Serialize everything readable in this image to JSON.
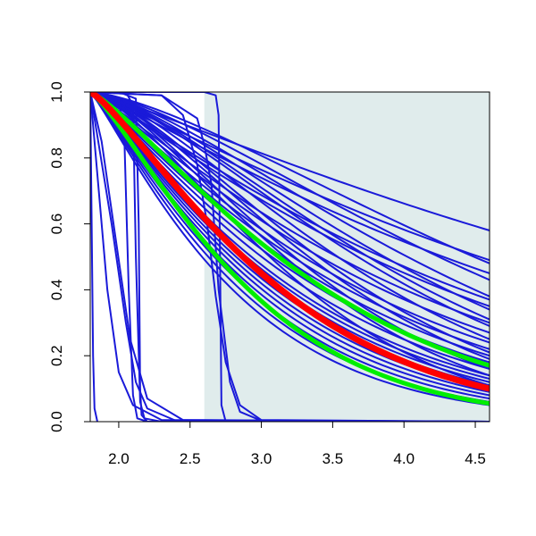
{
  "chart_data": {
    "type": "line",
    "title": "",
    "xlabel": "",
    "ylabel": "",
    "xlim": [
      1.8,
      4.6
    ],
    "ylim": [
      0,
      1
    ],
    "x_ticks": [
      2.0,
      2.5,
      3.0,
      3.5,
      4.0,
      4.5
    ],
    "x_tick_labels": [
      "2.0",
      "2.5",
      "3.0",
      "3.5",
      "4.0",
      "4.5"
    ],
    "y_ticks": [
      0.0,
      0.2,
      0.4,
      0.6,
      0.8,
      1.0
    ],
    "y_tick_labels": [
      "0.0",
      "0.2",
      "0.4",
      "0.6",
      "0.8",
      "1.0"
    ],
    "grid": false,
    "legend": "none",
    "shaded_region": {
      "x_start": 2.6,
      "x_end": 4.6,
      "color": "#e0ecec"
    },
    "colors": {
      "samples": "#1a1ad9",
      "central": "#ff0000",
      "bounds": "#00ee00"
    },
    "curve_samples": {
      "gradual_ends": [
        0.58,
        0.49,
        0.45,
        0.37,
        0.35,
        0.3,
        0.27,
        0.24,
        0.22,
        0.2,
        0.18,
        0.16,
        0.14,
        0.13,
        0.12,
        0.11,
        0.1,
        0.09,
        0.08,
        0.07,
        0.06,
        0.05
      ],
      "shouldered_ends": [
        0.48,
        0.43,
        0.38,
        0.34,
        0.31,
        0.29,
        0.25,
        0.21,
        0.19,
        0.16,
        0.14,
        0.11
      ],
      "steep_drops": [
        {
          "x": [
            1.8,
            1.81,
            1.82,
            1.83,
            1.85
          ],
          "y": [
            1.0,
            0.6,
            0.2,
            0.04,
            0.0
          ]
        },
        {
          "x": [
            1.8,
            1.86,
            1.92,
            2.0,
            2.1,
            2.3,
            4.6
          ],
          "y": [
            1.0,
            0.7,
            0.4,
            0.15,
            0.05,
            0.005,
            0.0
          ]
        },
        {
          "x": [
            1.8,
            1.95,
            2.05,
            2.12,
            2.2,
            2.4,
            4.6
          ],
          "y": [
            1.0,
            0.6,
            0.3,
            0.12,
            0.04,
            0.003,
            0.0
          ]
        },
        {
          "x": [
            1.8,
            1.88,
            1.98,
            2.08,
            2.2,
            2.45,
            4.6
          ],
          "y": [
            1.0,
            0.85,
            0.55,
            0.25,
            0.07,
            0.005,
            0.0
          ]
        },
        {
          "x": [
            1.8,
            2.0,
            2.04,
            2.07,
            2.1,
            2.13,
            2.2,
            4.6
          ],
          "y": [
            1.0,
            0.98,
            0.85,
            0.4,
            0.08,
            0.01,
            0.0,
            0.0
          ]
        },
        {
          "x": [
            1.8,
            2.05,
            2.1,
            2.12,
            2.15,
            2.18,
            2.3,
            4.6
          ],
          "y": [
            1.0,
            1.0,
            0.96,
            0.5,
            0.06,
            0.01,
            0.0,
            0.0
          ]
        },
        {
          "x": [
            1.8,
            2.0,
            2.12,
            2.14,
            2.15,
            2.16,
            2.2,
            4.6
          ],
          "y": [
            1.0,
            1.0,
            0.98,
            0.6,
            0.1,
            0.02,
            0.0,
            0.0
          ]
        },
        {
          "x": [
            1.8,
            2.6,
            2.68,
            2.7,
            2.71,
            2.72,
            2.75,
            4.6
          ],
          "y": [
            1.0,
            1.0,
            0.99,
            0.93,
            0.5,
            0.05,
            0.0,
            0.0
          ]
        },
        {
          "x": [
            1.8,
            2.3,
            2.45,
            2.55,
            2.62,
            2.68,
            2.75,
            2.85,
            3.0,
            4.6
          ],
          "y": [
            1.0,
            0.99,
            0.93,
            0.78,
            0.6,
            0.38,
            0.18,
            0.05,
            0.005,
            0.0
          ]
        },
        {
          "x": [
            1.8,
            2.3,
            2.55,
            2.6,
            2.65,
            2.7,
            2.78,
            2.85,
            3.0,
            4.6
          ],
          "y": [
            1.0,
            0.99,
            0.92,
            0.84,
            0.72,
            0.4,
            0.12,
            0.03,
            0.003,
            0.0
          ]
        }
      ]
    },
    "curve_green_upper": {
      "end": 0.17
    },
    "curve_green_lower": {
      "end": 0.055
    },
    "curve_red": {
      "end": 0.1
    }
  }
}
